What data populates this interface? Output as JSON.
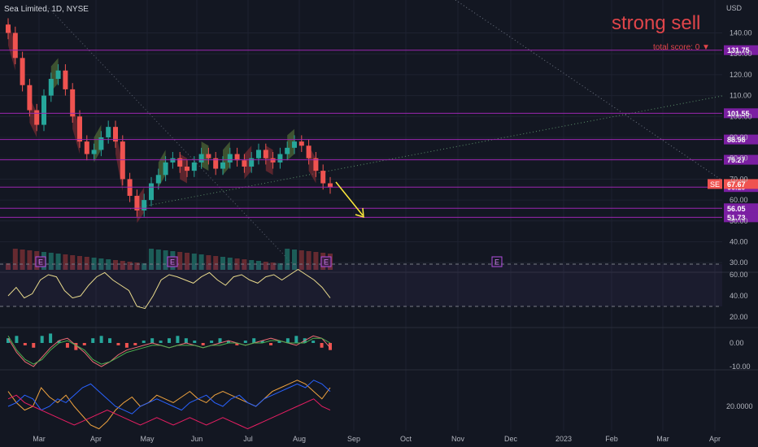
{
  "header": {
    "symbol_line": "Sea Limited, 1D, NYSE",
    "currency": "USD",
    "signal_text": "strong sell",
    "score_text": "total score: 0 ▼"
  },
  "colors": {
    "background": "#131722",
    "level_line": "#9c27b0",
    "candle_up": "#26a69a",
    "candle_down": "#ef5350",
    "signal_red": "#e0454a",
    "arrow": "#ffeb3b",
    "rsi_line": "#e8d98c",
    "macd_line": "#f0a33f",
    "signal_line": "#2962ff"
  },
  "chart_data": {
    "type": "candlestick",
    "price_axis": {
      "ticks": [
        "140.00",
        "130.00",
        "120.00",
        "110.00",
        "100.00",
        "90.00",
        "80.00",
        "70.00",
        "60.00",
        "50.00",
        "40.00",
        "30.00"
      ],
      "tick_values": [
        140,
        130,
        120,
        110,
        100,
        90,
        80,
        70,
        60,
        50,
        40,
        30
      ]
    },
    "levels": [
      131.75,
      101.55,
      88.98,
      79.27,
      66.19,
      56.05,
      51.73
    ],
    "level_labels": [
      "131.75",
      "101.55",
      "88.98",
      "79.27",
      "66.19",
      "56.05",
      "51.73"
    ],
    "last_price": {
      "ticker": "SE",
      "value": 67.67,
      "label": "67.67"
    },
    "time_labels": [
      "Mar",
      "Apr",
      "May",
      "Jun",
      "Jul",
      "Aug",
      "Sep",
      "Oct",
      "Nov",
      "Dec",
      "2023",
      "Feb",
      "Mar",
      "Apr"
    ],
    "close_series": [
      140,
      128,
      115,
      103,
      96,
      110,
      118,
      122,
      113,
      100,
      88,
      82,
      84,
      90,
      95,
      88,
      70,
      62,
      55,
      60,
      68,
      72,
      78,
      80,
      76,
      74,
      78,
      82,
      80,
      75,
      78,
      82,
      79,
      76,
      80,
      84,
      80,
      78,
      82,
      85,
      88,
      86,
      80,
      74,
      68,
      66
    ],
    "earnings_markers": [
      "E",
      "E",
      "E",
      "E"
    ],
    "rsi": {
      "ticks": [
        "60.00",
        "40.00",
        "20.00"
      ],
      "tick_values": [
        60,
        40,
        20
      ],
      "values": [
        40,
        48,
        38,
        42,
        55,
        60,
        58,
        45,
        38,
        40,
        50,
        58,
        62,
        55,
        50,
        45,
        30,
        28,
        40,
        55,
        60,
        58,
        55,
        52,
        58,
        62,
        55,
        50,
        58,
        60,
        55,
        52,
        58,
        60,
        55,
        60,
        65,
        60,
        55,
        48,
        38
      ]
    },
    "macd": {
      "ticks": [
        "0.00",
        "-10.00"
      ],
      "tick_values": [
        0,
        -10
      ],
      "histogram": [
        2,
        3,
        -1,
        -2,
        3,
        4,
        1,
        -2,
        -3,
        -1,
        2,
        3,
        2,
        -1,
        -2,
        -1,
        1,
        2,
        1,
        2,
        3,
        2,
        1,
        -1,
        1,
        2,
        1,
        -1,
        1,
        2,
        1,
        -1,
        1,
        2,
        3,
        2,
        1,
        -2,
        -3
      ],
      "macd_line": [
        2,
        -4,
        -8,
        -10,
        -6,
        -2,
        1,
        2,
        -1,
        -4,
        -8,
        -10,
        -8,
        -5,
        -3,
        -2,
        -1,
        0,
        -1,
        -2,
        -1,
        0,
        -1,
        -2,
        -1,
        0,
        1,
        0,
        -1,
        0,
        1,
        2,
        1,
        0,
        -1,
        1,
        3,
        2,
        -2
      ],
      "signal_line": [
        3,
        -3,
        -7,
        -9,
        -7,
        -3,
        0,
        1,
        -1,
        -3,
        -7,
        -9,
        -8,
        -6,
        -4,
        -3,
        -2,
        -1,
        -1,
        -2,
        -1,
        -1,
        -1,
        -2,
        -1,
        -1,
        0,
        0,
        -1,
        0,
        0,
        1,
        1,
        0,
        0,
        0,
        2,
        2,
        0
      ]
    },
    "dmi": {
      "ticks": [
        "20.0000"
      ],
      "tick_values": [
        20
      ],
      "orange": [
        28,
        22,
        18,
        20,
        30,
        25,
        22,
        26,
        20,
        15,
        10,
        8,
        12,
        18,
        22,
        25,
        20,
        22,
        26,
        24,
        22,
        25,
        28,
        24,
        22,
        26,
        28,
        26,
        24,
        22,
        20,
        24,
        28,
        30,
        32,
        34,
        32,
        28,
        24,
        30
      ],
      "blue": [
        20,
        22,
        26,
        24,
        18,
        20,
        24,
        22,
        26,
        30,
        32,
        28,
        24,
        20,
        18,
        16,
        20,
        22,
        24,
        22,
        20,
        18,
        22,
        24,
        26,
        22,
        20,
        24,
        26,
        22,
        20,
        24,
        26,
        28,
        30,
        32,
        30,
        34,
        32,
        28
      ],
      "red": [
        24,
        26,
        22,
        20,
        18,
        16,
        14,
        12,
        10,
        12,
        14,
        16,
        18,
        16,
        14,
        12,
        10,
        12,
        14,
        12,
        10,
        12,
        14,
        12,
        10,
        12,
        14,
        12,
        10,
        8,
        10,
        12,
        14,
        16,
        18,
        20,
        22,
        24,
        20,
        18
      ]
    }
  }
}
